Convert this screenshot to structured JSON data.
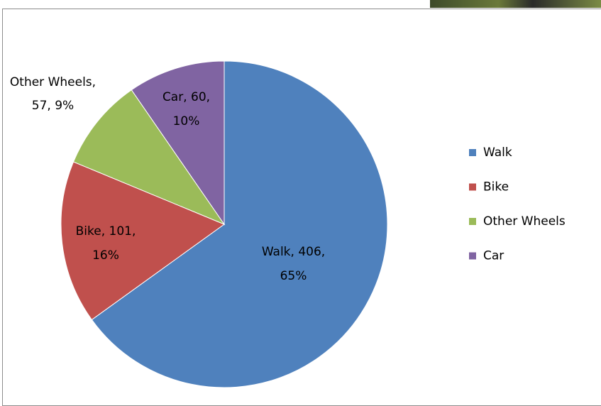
{
  "chart_data": {
    "type": "pie",
    "categories": [
      "Walk",
      "Bike",
      "Other Wheels",
      "Car"
    ],
    "values": [
      406,
      101,
      57,
      60
    ],
    "value_labels": [
      "Walk, 406, 65%",
      "Bike, 101, 16%",
      "Other Wheels, 57, 9%",
      "Car, 60, 10%"
    ],
    "colors": [
      "#4f81bd",
      "#c0504d",
      "#9bbb59",
      "#8064a2"
    ],
    "legend": "right"
  }
}
